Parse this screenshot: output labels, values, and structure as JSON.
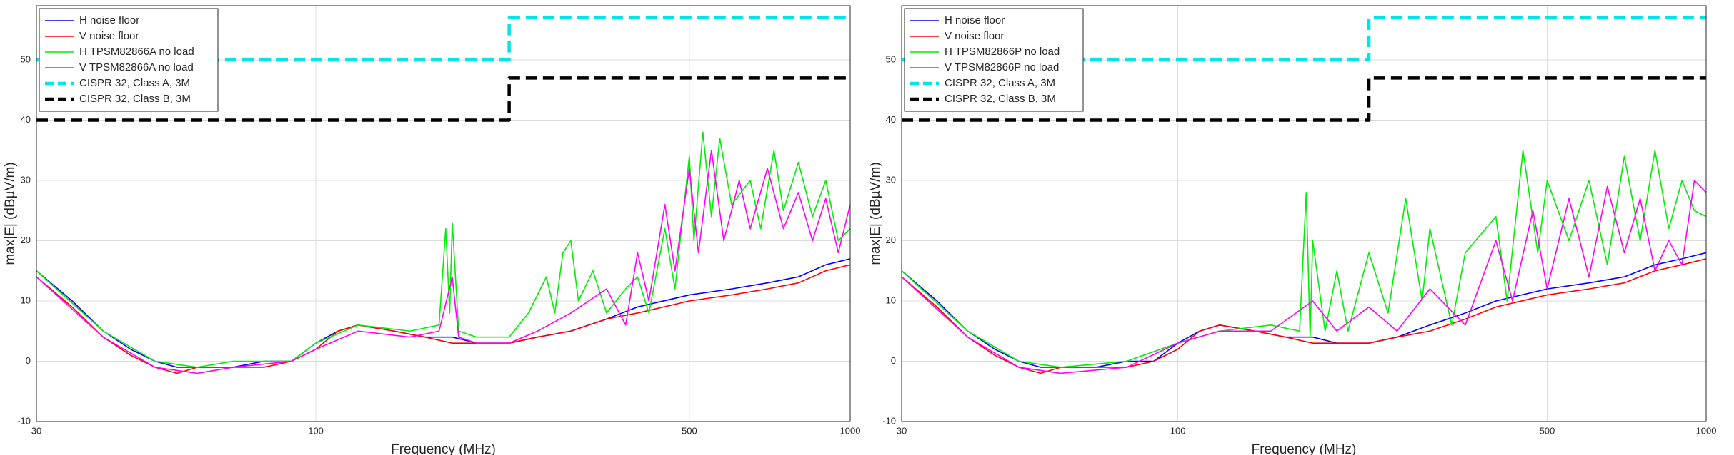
{
  "chart_data": [
    {
      "type": "line",
      "xlabel": "Frequency (MHz)",
      "ylabel": "max|E| (dBµV/m)",
      "xscale": "log",
      "grid": true,
      "legend": "upper left",
      "xlim": [
        30,
        1000
      ],
      "xticks": [
        30,
        100,
        500,
        1000
      ],
      "ylim": [
        -10,
        59
      ],
      "yticks": [
        -10,
        0,
        10,
        20,
        30,
        40,
        50
      ],
      "series": [
        {
          "name": "H noise floor",
          "color": "#0000ff",
          "style": "solid",
          "x": [
            30,
            35,
            40,
            45,
            50,
            55,
            60,
            70,
            80,
            90,
            100,
            110,
            120,
            140,
            160,
            180,
            200,
            230,
            260,
            300,
            350,
            400,
            500,
            600,
            700,
            800,
            900,
            1000
          ],
          "values": [
            15,
            10,
            5,
            2,
            0,
            -1,
            -1,
            -1,
            0,
            0,
            3,
            5,
            6,
            5,
            4,
            4,
            3,
            3,
            4,
            5,
            7,
            9,
            11,
            12,
            13,
            14,
            16,
            17
          ]
        },
        {
          "name": "V noise floor",
          "color": "#ff0000",
          "style": "solid",
          "x": [
            30,
            35,
            40,
            45,
            50,
            55,
            60,
            70,
            80,
            90,
            100,
            110,
            120,
            140,
            160,
            180,
            200,
            230,
            260,
            300,
            350,
            400,
            500,
            600,
            700,
            800,
            900,
            1000
          ],
          "values": [
            14,
            9,
            4,
            1,
            -1,
            -2,
            -1,
            -1,
            -1,
            0,
            2,
            5,
            6,
            5,
            4,
            3,
            3,
            3,
            4,
            5,
            7,
            8,
            10,
            11,
            12,
            13,
            15,
            16
          ]
        },
        {
          "name": "H TPSM82866A no load",
          "color": "#00ee00",
          "style": "solid",
          "x": [
            30,
            40,
            50,
            60,
            70,
            80,
            90,
            100,
            120,
            150,
            170,
            175,
            178,
            180,
            185,
            200,
            230,
            250,
            270,
            280,
            290,
            300,
            310,
            330,
            350,
            380,
            400,
            420,
            450,
            470,
            500,
            510,
            530,
            550,
            570,
            600,
            650,
            680,
            720,
            750,
            800,
            850,
            900,
            950,
            1000
          ],
          "values": [
            15,
            5,
            0,
            -1,
            0,
            0,
            0,
            3,
            6,
            5,
            6,
            22,
            8,
            23,
            5,
            4,
            4,
            8,
            14,
            8,
            18,
            20,
            10,
            15,
            8,
            12,
            14,
            8,
            22,
            12,
            34,
            20,
            38,
            24,
            37,
            26,
            30,
            22,
            35,
            25,
            33,
            24,
            30,
            20,
            22
          ]
        },
        {
          "name": "V TPSM82866A no load",
          "color": "#ff00ff",
          "style": "solid",
          "x": [
            30,
            40,
            50,
            60,
            70,
            90,
            100,
            120,
            150,
            170,
            180,
            185,
            200,
            230,
            260,
            300,
            350,
            380,
            400,
            420,
            450,
            470,
            500,
            520,
            550,
            580,
            620,
            650,
            700,
            750,
            800,
            850,
            900,
            950,
            1000
          ],
          "values": [
            14,
            4,
            -1,
            -2,
            -1,
            0,
            2,
            5,
            4,
            5,
            14,
            4,
            3,
            3,
            5,
            8,
            12,
            6,
            18,
            10,
            26,
            15,
            32,
            18,
            35,
            20,
            30,
            22,
            32,
            22,
            28,
            20,
            27,
            18,
            26
          ]
        },
        {
          "name": "CISPR 32, Class A, 3M",
          "color": "#00e5e5",
          "style": "dashed",
          "x": [
            30,
            230,
            230,
            1000
          ],
          "values": [
            50,
            50,
            57,
            57
          ]
        },
        {
          "name": "CISPR 32, Class B, 3M",
          "color": "#000000",
          "style": "dashed",
          "x": [
            30,
            230,
            230,
            1000
          ],
          "values": [
            40,
            40,
            47,
            47
          ]
        }
      ]
    },
    {
      "type": "line",
      "xlabel": "Frequency (MHz)",
      "ylabel": "max|E| (dBµV/m)",
      "xscale": "log",
      "grid": true,
      "legend": "upper left",
      "xlim": [
        30,
        1000
      ],
      "xticks": [
        30,
        100,
        500,
        1000
      ],
      "ylim": [
        -10,
        59
      ],
      "yticks": [
        -10,
        0,
        10,
        20,
        30,
        40,
        50
      ],
      "series": [
        {
          "name": "H noise floor",
          "color": "#0000ff",
          "style": "solid",
          "x": [
            30,
            35,
            40,
            45,
            50,
            55,
            60,
            70,
            80,
            90,
            100,
            110,
            120,
            140,
            160,
            180,
            200,
            230,
            260,
            300,
            350,
            400,
            500,
            600,
            700,
            800,
            900,
            1000
          ],
          "values": [
            15,
            10,
            5,
            2,
            0,
            -1,
            -1,
            -1,
            0,
            0,
            3,
            5,
            6,
            5,
            4,
            4,
            3,
            3,
            4,
            6,
            8,
            10,
            12,
            13,
            14,
            16,
            17,
            18
          ]
        },
        {
          "name": "V noise floor",
          "color": "#ff0000",
          "style": "solid",
          "x": [
            30,
            35,
            40,
            45,
            50,
            55,
            60,
            70,
            80,
            90,
            100,
            110,
            120,
            140,
            160,
            180,
            200,
            230,
            260,
            300,
            350,
            400,
            500,
            600,
            700,
            800,
            900,
            1000
          ],
          "values": [
            14,
            9,
            4,
            1,
            -1,
            -2,
            -1,
            -1,
            -1,
            0,
            2,
            5,
            6,
            5,
            4,
            3,
            3,
            3,
            4,
            5,
            7,
            9,
            11,
            12,
            13,
            15,
            16,
            17
          ]
        },
        {
          "name": "H TPSM82866P no load",
          "color": "#00ee00",
          "style": "solid",
          "x": [
            30,
            40,
            50,
            60,
            80,
            100,
            120,
            150,
            170,
            175,
            178,
            180,
            190,
            200,
            210,
            230,
            250,
            270,
            290,
            300,
            330,
            350,
            400,
            420,
            450,
            480,
            500,
            550,
            600,
            650,
            700,
            750,
            800,
            850,
            900,
            950,
            1000
          ],
          "values": [
            15,
            5,
            0,
            -1,
            0,
            3,
            5,
            6,
            5,
            28,
            4,
            20,
            5,
            15,
            5,
            18,
            8,
            27,
            10,
            22,
            6,
            18,
            24,
            10,
            35,
            18,
            30,
            20,
            30,
            16,
            34,
            20,
            35,
            22,
            30,
            25,
            24
          ]
        },
        {
          "name": "V TPSM82866P no load",
          "color": "#ff00ff",
          "style": "solid",
          "x": [
            30,
            40,
            50,
            60,
            80,
            100,
            120,
            150,
            180,
            200,
            230,
            260,
            300,
            350,
            400,
            430,
            470,
            500,
            550,
            600,
            650,
            700,
            750,
            800,
            850,
            900,
            950,
            1000
          ],
          "values": [
            14,
            4,
            -1,
            -2,
            -1,
            3,
            5,
            5,
            10,
            5,
            9,
            5,
            12,
            6,
            20,
            10,
            25,
            12,
            27,
            14,
            29,
            18,
            27,
            15,
            20,
            16,
            30,
            28
          ]
        },
        {
          "name": "CISPR 32, Class A, 3M",
          "color": "#00e5e5",
          "style": "dashed",
          "x": [
            30,
            230,
            230,
            1000
          ],
          "values": [
            50,
            50,
            57,
            57
          ]
        },
        {
          "name": "CISPR 32, Class B, 3M",
          "color": "#000000",
          "style": "dashed",
          "x": [
            30,
            230,
            230,
            1000
          ],
          "values": [
            40,
            40,
            47,
            47
          ]
        }
      ]
    }
  ]
}
